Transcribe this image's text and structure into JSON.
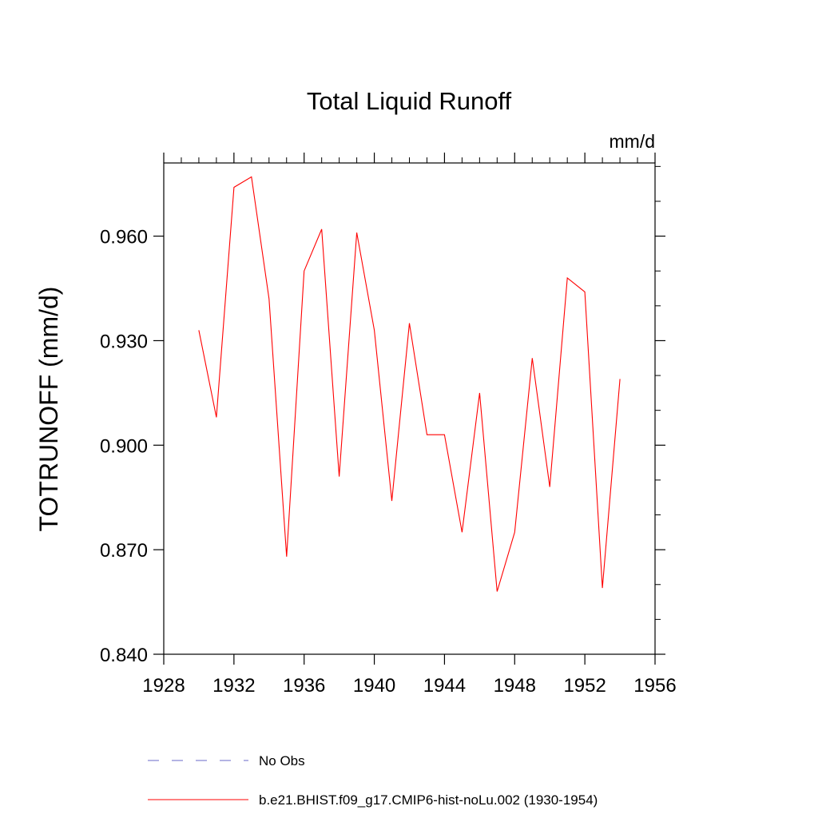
{
  "chart_data": {
    "type": "line",
    "title": "Total Liquid Runoff",
    "units_label": "mm/d",
    "ylabel": "TOTRUNOFF  (mm/d)",
    "xlabel": "",
    "xlim": [
      1928,
      1956
    ],
    "ylim": [
      0.84,
      0.981
    ],
    "xticks": [
      1928,
      1932,
      1936,
      1940,
      1944,
      1948,
      1952,
      1956
    ],
    "xtick_labels": [
      "1928",
      "1932",
      "1936",
      "1940",
      "1944",
      "1948",
      "1952",
      "1956"
    ],
    "yticks": [
      0.84,
      0.87,
      0.9,
      0.93,
      0.96
    ],
    "ytick_labels": [
      "0.840",
      "0.870",
      "0.900",
      "0.930",
      "0.960"
    ],
    "grid": false,
    "legend_position": "bottom",
    "series": [
      {
        "name": "b.e21.BHIST.f09_g17.CMIP6-hist-noLu.002 (1930-1954)",
        "color": "#ff0000",
        "style": "solid",
        "x": [
          1930,
          1931,
          1932,
          1933,
          1934,
          1935,
          1936,
          1937,
          1938,
          1939,
          1940,
          1941,
          1942,
          1943,
          1944,
          1945,
          1946,
          1947,
          1948,
          1949,
          1950,
          1951,
          1952,
          1953,
          1954
        ],
        "values": [
          0.933,
          0.908,
          0.974,
          0.977,
          0.942,
          0.868,
          0.95,
          0.962,
          0.891,
          0.961,
          0.933,
          0.884,
          0.935,
          0.903,
          0.903,
          0.875,
          0.915,
          0.858,
          0.875,
          0.925,
          0.888,
          0.948,
          0.944,
          0.859,
          0.919
        ]
      }
    ],
    "legend": [
      {
        "label": "No Obs",
        "color": "#6a6ac8",
        "style": "dashed"
      },
      {
        "label": "b.e21.BHIST.f09_g17.CMIP6-hist-noLu.002 (1930-1954)",
        "color": "#ff0000",
        "style": "solid"
      }
    ]
  }
}
